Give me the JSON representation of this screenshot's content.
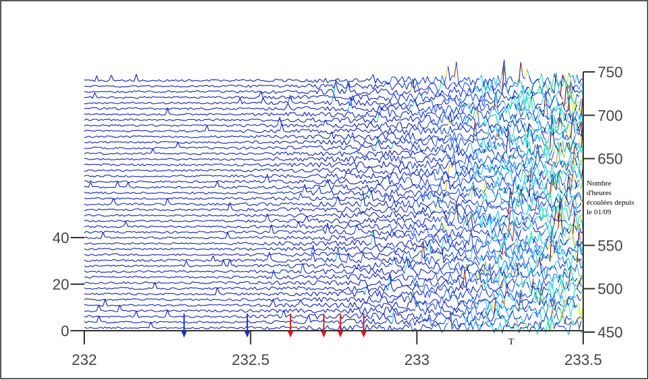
{
  "chart_data": {
    "type": "line",
    "chart_kind": "waterfall",
    "title": "",
    "x_axis": {
      "label": "T",
      "range": [
        232,
        233.5
      ],
      "ticks": [
        232,
        232.5,
        233,
        233.5
      ],
      "tick_labels": [
        "232",
        "232.5",
        "233",
        "233.5"
      ]
    },
    "y_axis_left": {
      "label": "",
      "range": [
        0,
        50
      ],
      "ticks": [
        0,
        20,
        40
      ],
      "tick_labels": [
        "0",
        "20",
        "40"
      ]
    },
    "y_axis_right": {
      "label": "Nombre d'heures écoulées depuis le 01/09",
      "label_lines": [
        "Nombre",
        "d'heures",
        "écoulées depuis",
        "le 01/09"
      ],
      "range": [
        450,
        750
      ],
      "ticks": [
        450,
        500,
        550,
        650,
        700,
        750
      ],
      "tick_labels": [
        "450",
        "500",
        "550",
        "650",
        "700",
        "750"
      ]
    },
    "trace_hours_range": [
      455,
      740
    ],
    "trace_count": 45,
    "amplitude_colormap": [
      "#0a1fb0",
      "#2a5fe8",
      "#22c8f0",
      "#2fe0b0",
      "#c8ee30",
      "#f0d020",
      "#e08818",
      "#c81a12",
      "#7a0000"
    ],
    "onset_markers": [
      {
        "x": 232.3,
        "color": "#1a2fd0"
      },
      {
        "x": 232.49,
        "color": "#1a2fd0"
      },
      {
        "x": 232.62,
        "color": "#e01a1a"
      },
      {
        "x": 232.72,
        "color": "#e01a1a"
      },
      {
        "x": 232.77,
        "color": "#e01a1a"
      },
      {
        "x": 232.84,
        "color": "#e01a1a"
      }
    ],
    "grid": false,
    "legend": "none"
  }
}
